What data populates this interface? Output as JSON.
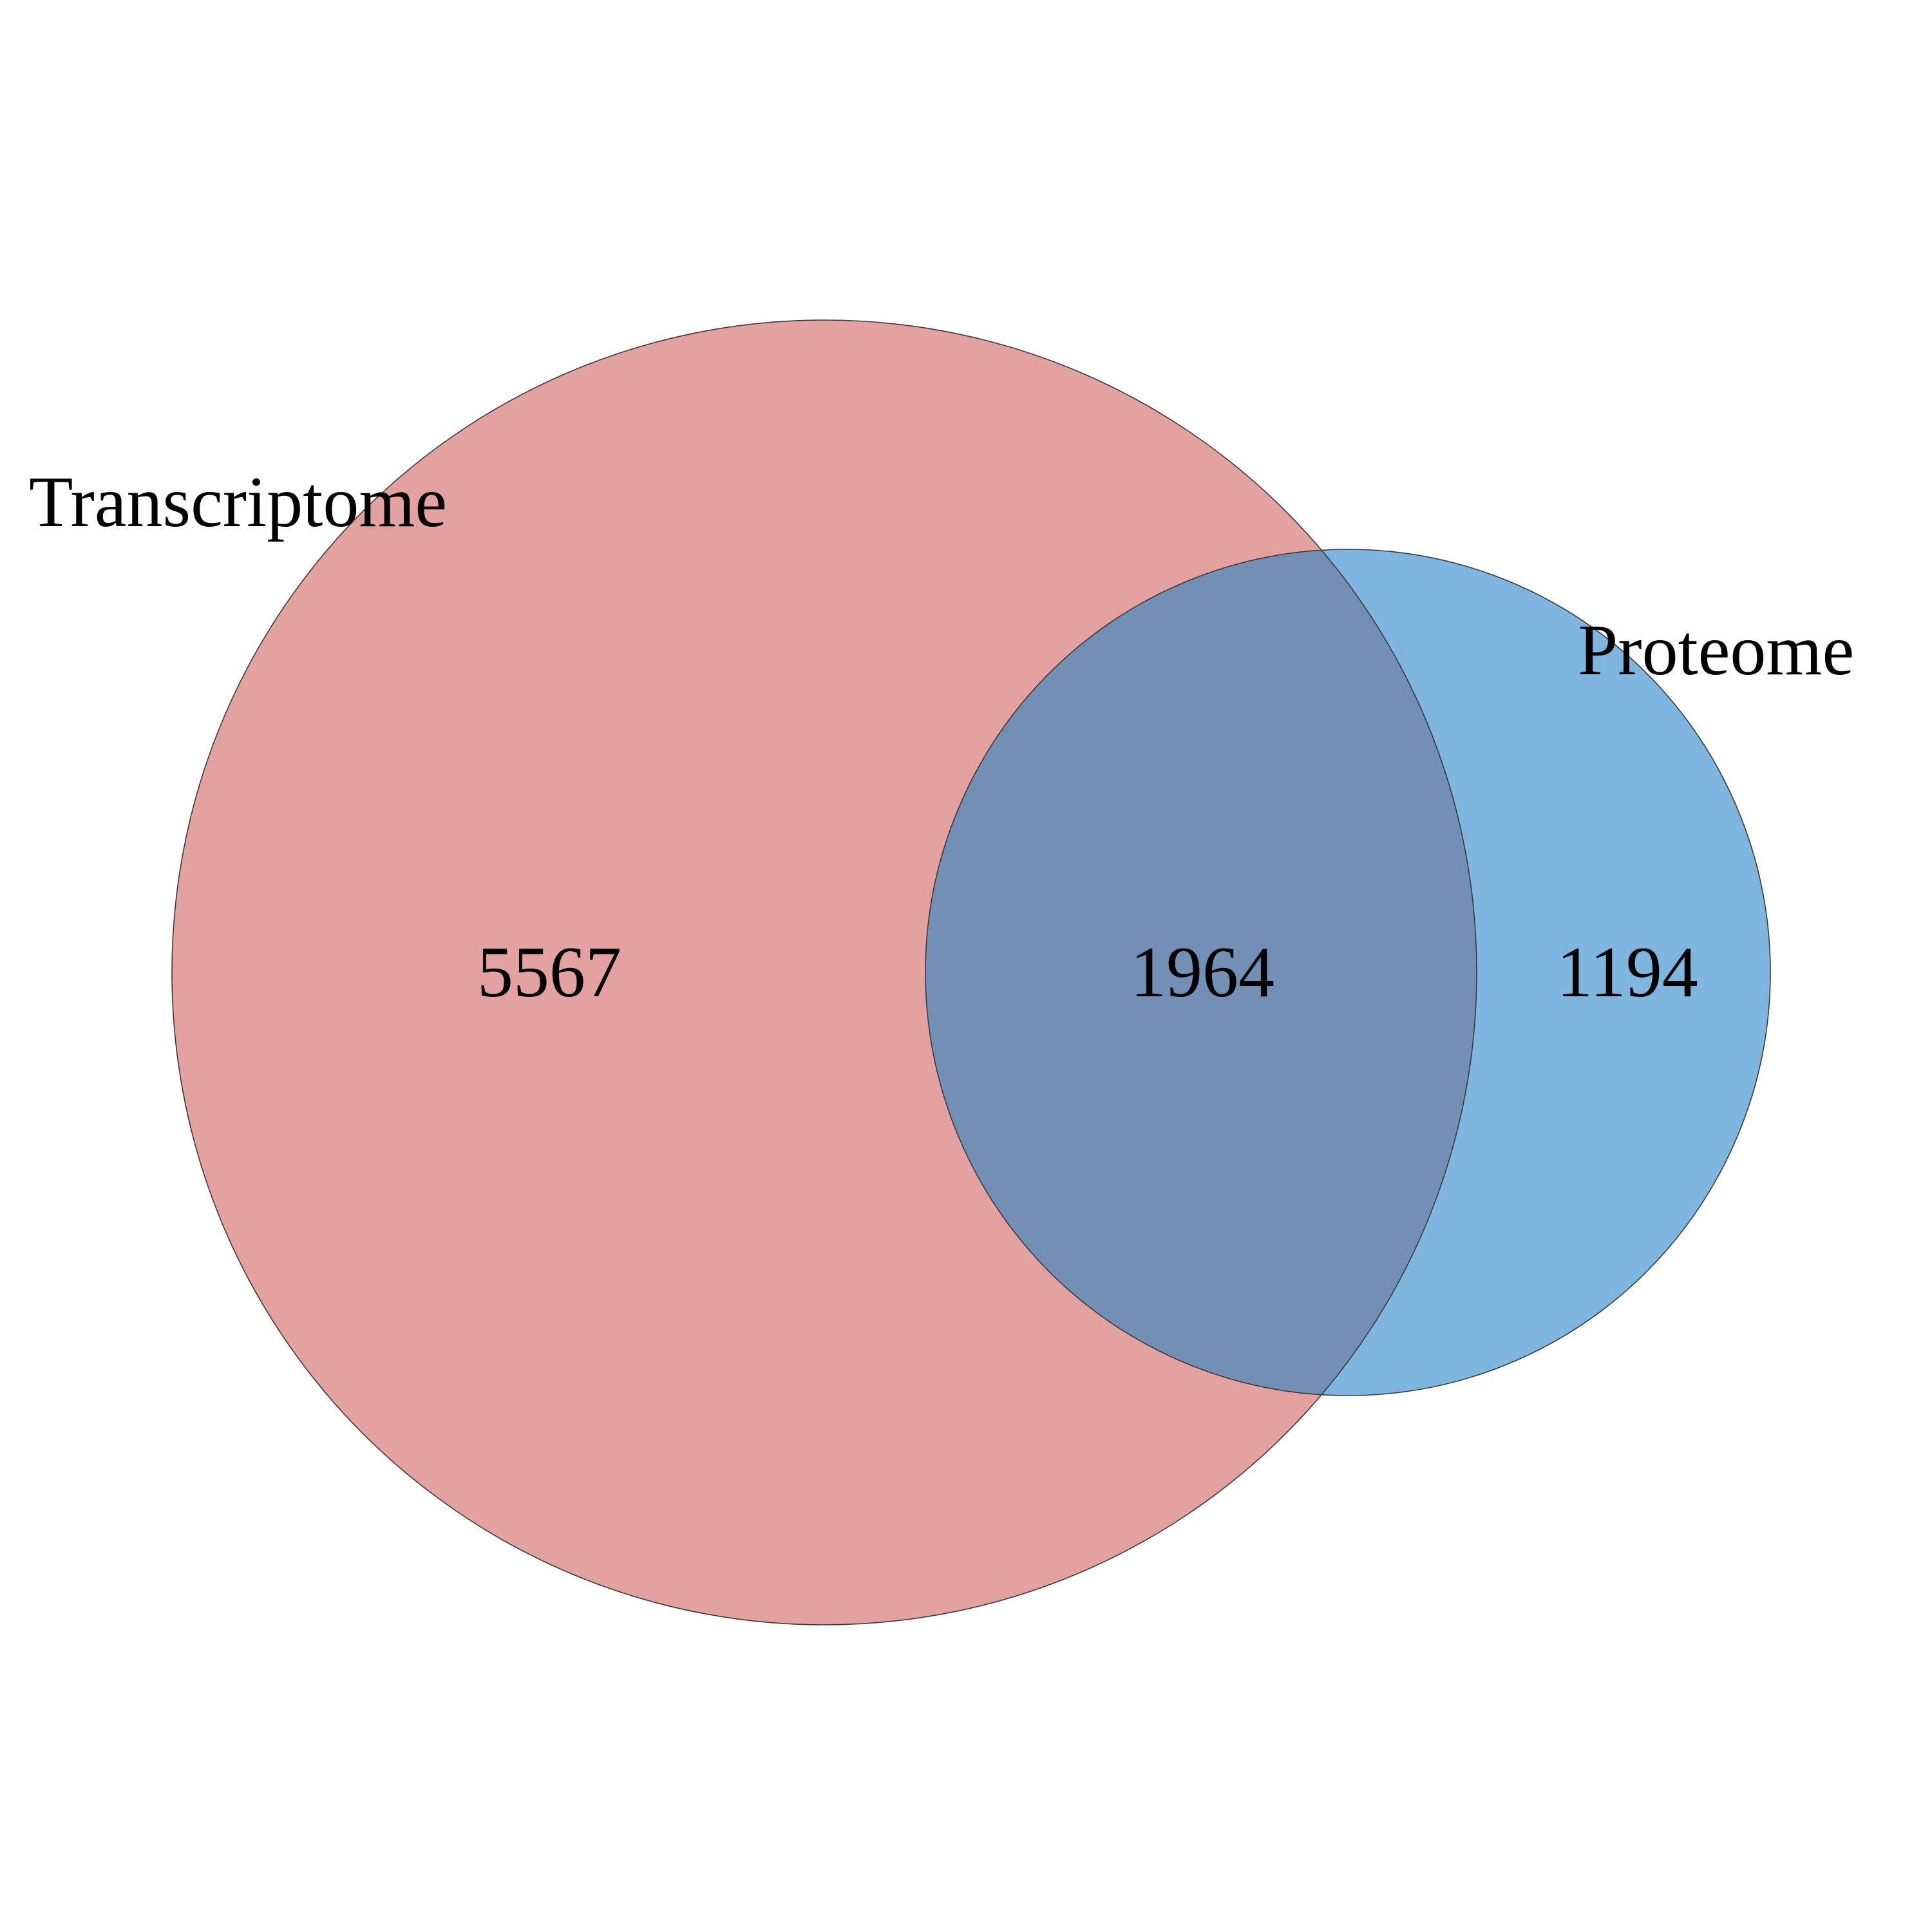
{
  "venn": {
    "sets": [
      {
        "name": "Transcriptome",
        "color": "#e3a19f"
      },
      {
        "name": "Proteome",
        "color": "#7fb6df"
      }
    ],
    "overlap_color": "#728fb5",
    "regions": {
      "transcriptome_only": "5567",
      "both": "1964",
      "proteome_only": "1194"
    }
  }
}
